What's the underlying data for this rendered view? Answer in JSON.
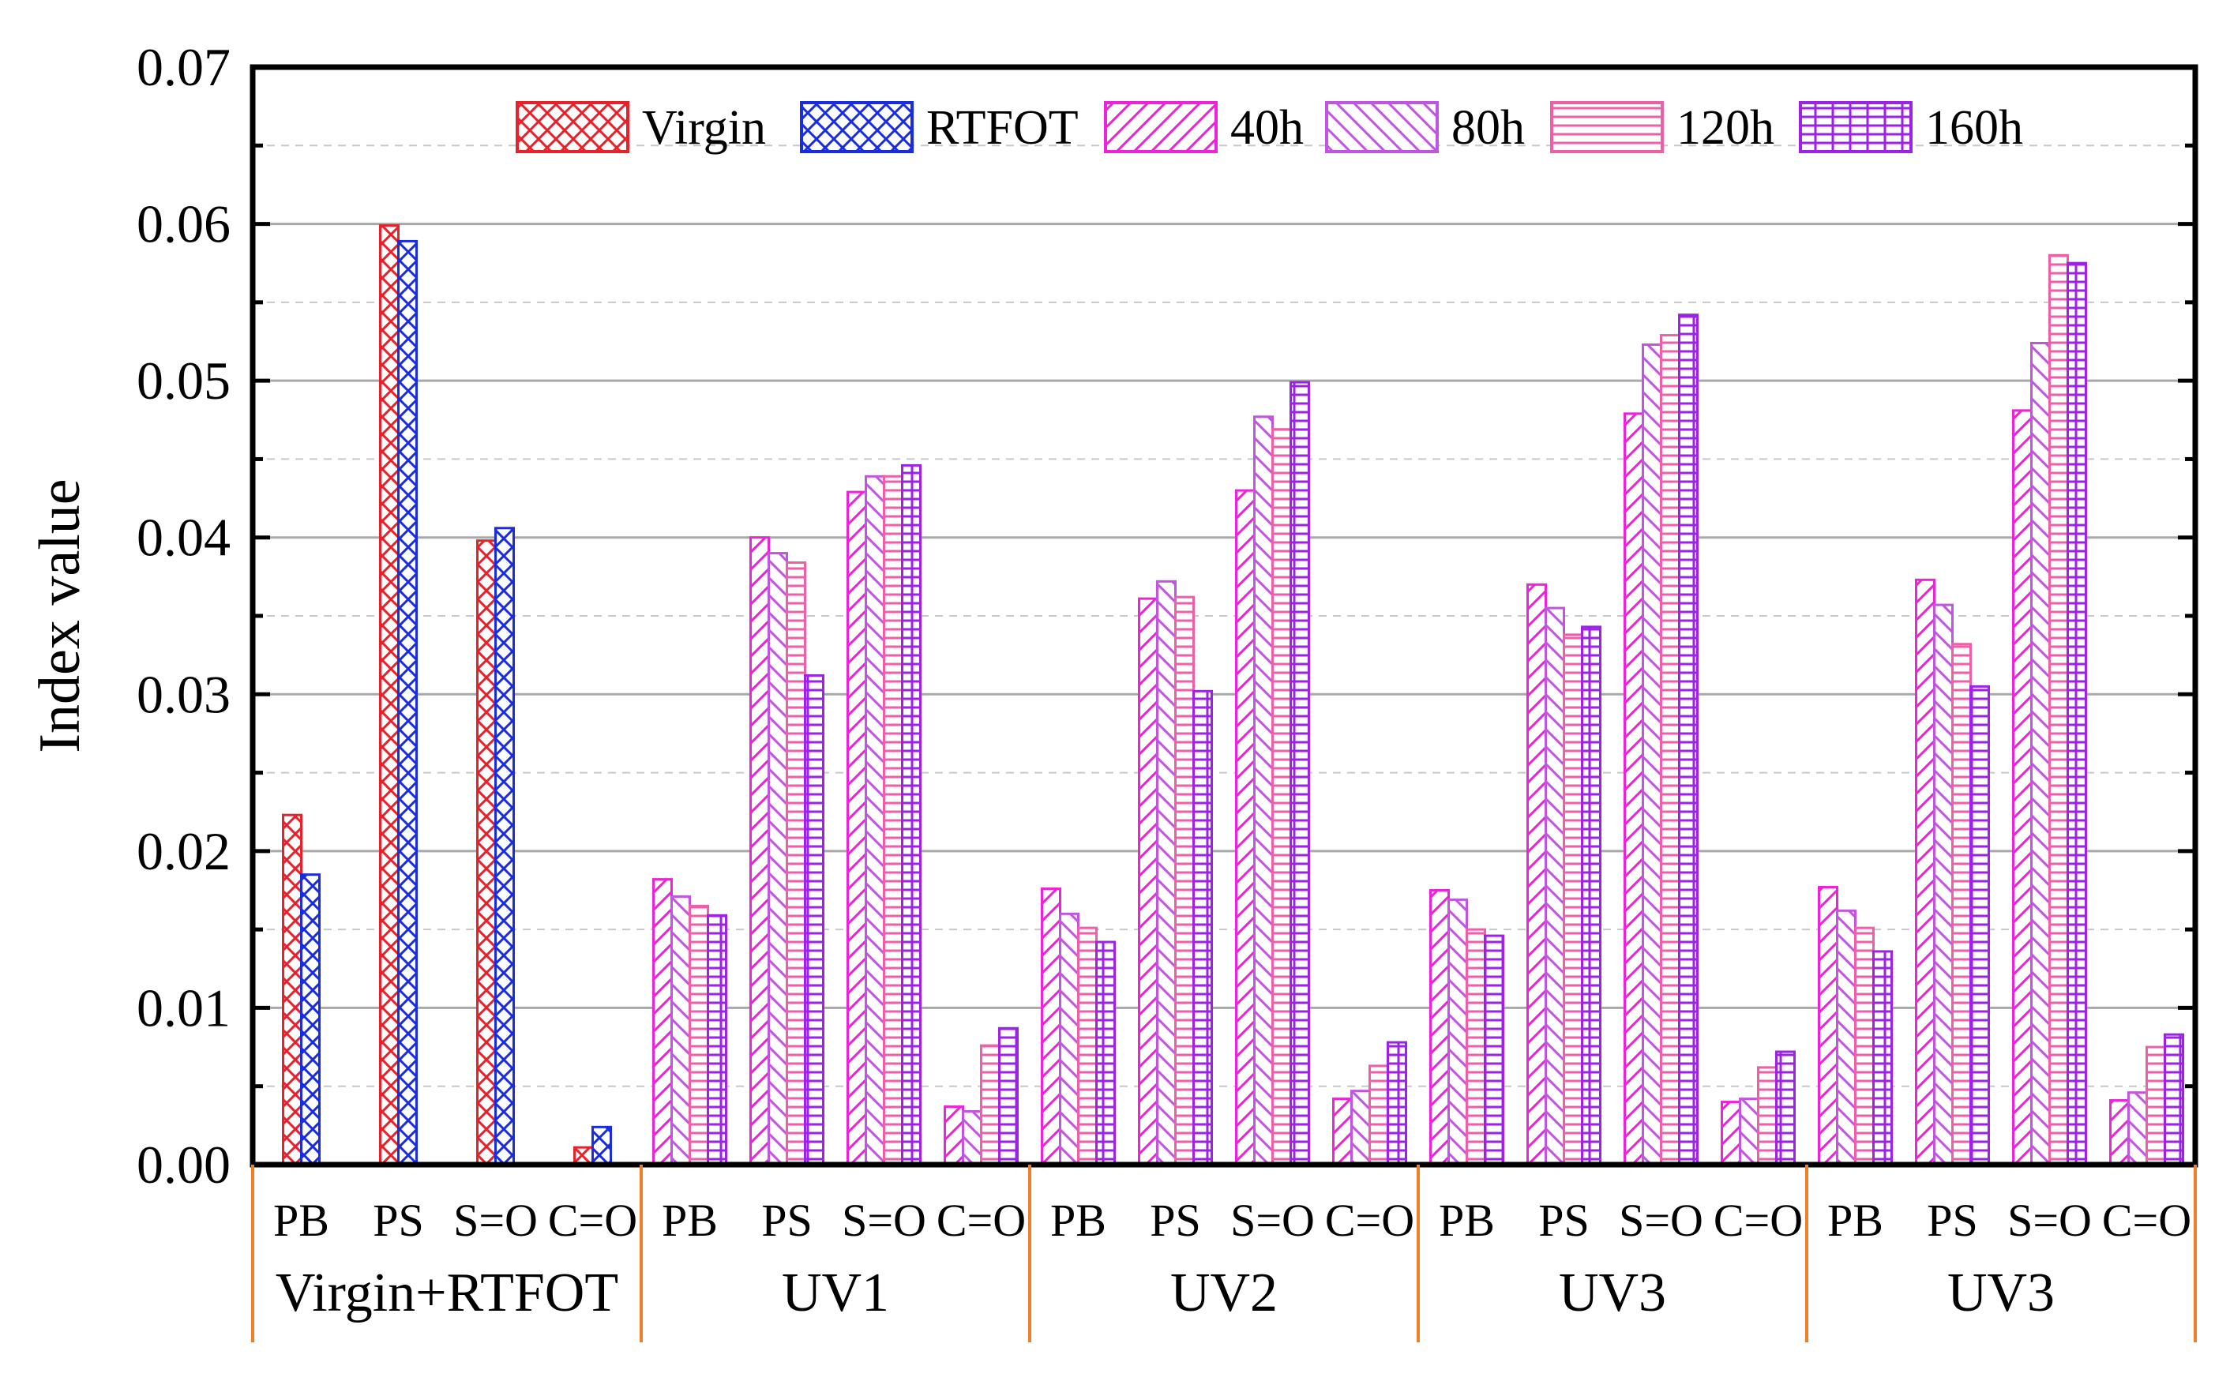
{
  "chart_data": {
    "type": "bar",
    "ylabel": "Index value",
    "ylim": [
      0,
      0.07
    ],
    "yticks": [
      "0.00",
      "0.01",
      "0.02",
      "0.03",
      "0.04",
      "0.05",
      "0.06",
      "0.07"
    ],
    "grid": true,
    "legend_position": "top",
    "groups": [
      {
        "label": "Virgin+RTFOT",
        "categories": [
          "PB",
          "PS",
          "S=O",
          "C=O"
        ]
      },
      {
        "label": "UV1",
        "categories": [
          "PB",
          "PS",
          "S=O",
          "C=O"
        ]
      },
      {
        "label": "UV2",
        "categories": [
          "PB",
          "PS",
          "S=O",
          "C=O"
        ]
      },
      {
        "label": "UV3",
        "categories": [
          "PB",
          "PS",
          "S=O",
          "C=O"
        ]
      },
      {
        "label": "UV3",
        "categories": [
          "PB",
          "PS",
          "S=O",
          "C=O"
        ]
      }
    ],
    "series": [
      {
        "name": "Virgin",
        "color": "#e8202a",
        "pattern": "crosshatch-fine",
        "values": [
          [
            0.0223,
            0.0599,
            0.0398,
            0.0011
          ],
          null,
          null,
          null,
          null
        ]
      },
      {
        "name": "RTFOT",
        "color": "#1a2ce0",
        "pattern": "crosshatch",
        "values": [
          [
            0.0185,
            0.0589,
            0.0406,
            0.0024
          ],
          null,
          null,
          null,
          null
        ]
      },
      {
        "name": "40h",
        "color": "#ee22d8",
        "pattern": "diagonal-up",
        "values": [
          null,
          [
            0.0182,
            0.04,
            0.0429,
            0.0037
          ],
          [
            0.0176,
            0.0361,
            0.043,
            0.0042
          ],
          [
            0.0175,
            0.037,
            0.0479,
            0.004
          ],
          [
            0.0177,
            0.0373,
            0.0481,
            0.0041
          ]
        ]
      },
      {
        "name": "80h",
        "color": "#c055e0",
        "pattern": "diagonal-down",
        "values": [
          null,
          [
            0.0171,
            0.039,
            0.0439,
            0.0034
          ],
          [
            0.016,
            0.0372,
            0.0477,
            0.0047
          ],
          [
            0.0169,
            0.0355,
            0.0523,
            0.0042
          ],
          [
            0.0162,
            0.0357,
            0.0524,
            0.0046
          ]
        ]
      },
      {
        "name": "120h",
        "color": "#ee5fa8",
        "pattern": "horizontal",
        "values": [
          null,
          [
            0.0165,
            0.0384,
            0.0439,
            0.0076
          ],
          [
            0.0151,
            0.0362,
            0.0469,
            0.0063
          ],
          [
            0.015,
            0.0338,
            0.0529,
            0.0062
          ],
          [
            0.0151,
            0.0332,
            0.058,
            0.0075
          ]
        ]
      },
      {
        "name": "160h",
        "color": "#9b22e6",
        "pattern": "grid",
        "values": [
          null,
          [
            0.0159,
            0.0312,
            0.0446,
            0.0087
          ],
          [
            0.0142,
            0.0302,
            0.0499,
            0.0078
          ],
          [
            0.0146,
            0.0343,
            0.0542,
            0.0072
          ],
          [
            0.0136,
            0.0305,
            0.0575,
            0.0083
          ]
        ]
      }
    ]
  }
}
